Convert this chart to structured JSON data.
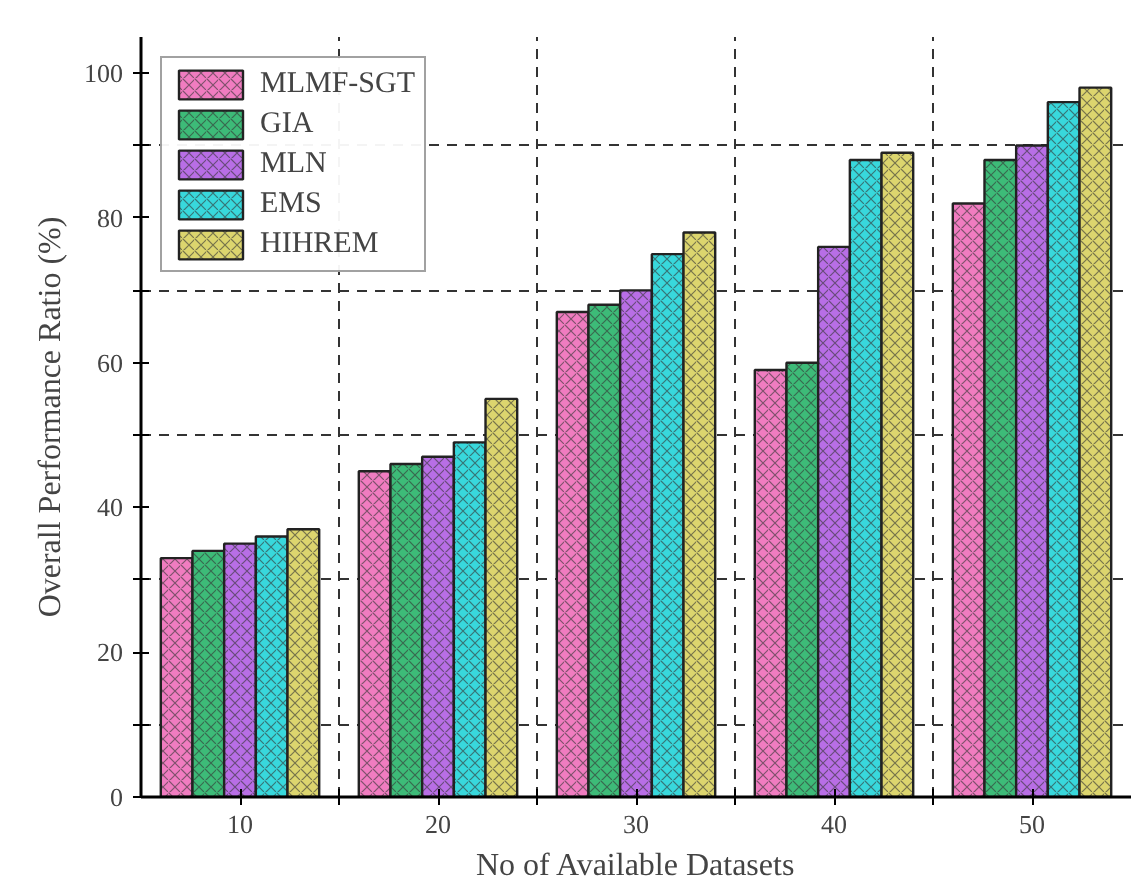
{
  "chart_data": {
    "type": "bar",
    "xlabel": "No of Available Datasets",
    "ylabel": "Overall Performance Ratio (%)",
    "x": [
      10,
      20,
      30,
      40,
      50
    ],
    "series": [
      {
        "name": "MLMF-SGT",
        "color": "#f07cc0",
        "values": [
          33,
          45,
          67,
          59,
          82
        ]
      },
      {
        "name": "GIA",
        "color": "#3dbb78",
        "values": [
          34,
          46,
          68,
          60,
          88
        ]
      },
      {
        "name": "MLN",
        "color": "#b86ee6",
        "values": [
          35,
          47,
          70,
          76,
          90
        ]
      },
      {
        "name": "EMS",
        "color": "#38d8dc",
        "values": [
          36,
          49,
          75,
          88,
          96
        ]
      },
      {
        "name": "HIHREM",
        "color": "#dcd56e",
        "values": [
          37,
          55,
          78,
          89,
          98
        ]
      }
    ],
    "xlim": [
      5,
      55
    ],
    "ylim": [
      0,
      105
    ],
    "xticks": [
      10,
      {
        "value": 15,
        "label": null
      },
      20,
      {
        "value": 25,
        "label": null
      },
      30,
      {
        "value": 35,
        "label": null
      },
      40,
      {
        "value": 45,
        "label": null
      },
      50
    ],
    "yticks": [
      0,
      {
        "value": 10,
        "label": null
      },
      20,
      {
        "value": 30,
        "label": null
      },
      40,
      {
        "value": 50,
        "label": null
      },
      60,
      {
        "value": 70,
        "label": null
      },
      80,
      {
        "value": 90,
        "label": null
      },
      100
    ],
    "grid": true,
    "legend": "top left"
  }
}
